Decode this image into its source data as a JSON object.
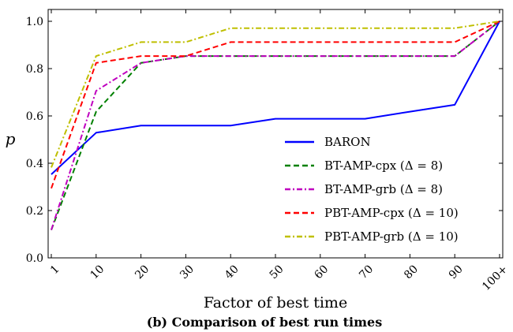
{
  "chart_data": {
    "type": "line",
    "title": "",
    "caption": "(b) Comparison of best run times",
    "xlabel": "Factor of best time",
    "ylabel": "p",
    "x_tick_labels": [
      "1",
      "10",
      "20",
      "30",
      "40",
      "50",
      "60",
      "70",
      "80",
      "90",
      "100+"
    ],
    "y_ticks": [
      "0.0",
      "0.2",
      "0.4",
      "0.6",
      "0.8",
      "1.0"
    ],
    "ylim": [
      0,
      1.05
    ],
    "grid": false,
    "legend_position": "lower-right",
    "series": [
      {
        "name": "BARON",
        "color": "#0000ff",
        "dash": "solid",
        "values": [
          0.353,
          0.529,
          0.559,
          0.559,
          0.559,
          0.588,
          0.588,
          0.588,
          0.618,
          0.647,
          1.0
        ]
      },
      {
        "name": "BT-AMP-cpx (Δ = 8)",
        "color": "#008000",
        "dash": "dashed",
        "values": [
          0.118,
          0.618,
          0.824,
          0.853,
          0.853,
          0.853,
          0.853,
          0.853,
          0.853,
          0.853,
          1.0
        ]
      },
      {
        "name": "BT-AMP-grb (Δ = 8)",
        "color": "#bf00bf",
        "dash": "dashdot",
        "values": [
          0.118,
          0.706,
          0.824,
          0.853,
          0.853,
          0.853,
          0.853,
          0.853,
          0.853,
          0.853,
          1.0
        ]
      },
      {
        "name": "PBT-AMP-cpx (Δ = 10)",
        "color": "#ff0000",
        "dash": "dashed",
        "values": [
          0.294,
          0.824,
          0.853,
          0.853,
          0.912,
          0.912,
          0.912,
          0.912,
          0.912,
          0.912,
          1.0
        ]
      },
      {
        "name": "PBT-AMP-grb (Δ = 10)",
        "color": "#bfbf00",
        "dash": "dashdot",
        "values": [
          0.382,
          0.853,
          0.912,
          0.912,
          0.971,
          0.971,
          0.971,
          0.971,
          0.971,
          0.971,
          1.0
        ]
      }
    ]
  }
}
